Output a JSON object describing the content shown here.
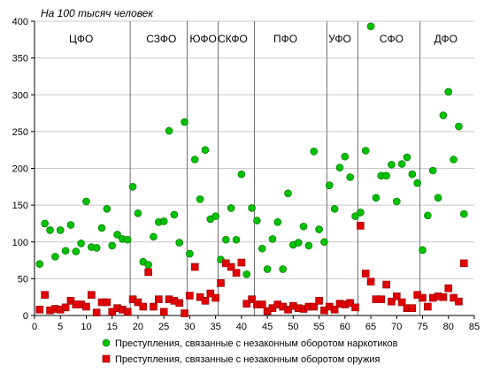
{
  "chart_data": {
    "type": "scatter",
    "ylabel": "На 100 тысяч человек",
    "xlim": [
      0,
      85
    ],
    "ylim": [
      0,
      400
    ],
    "x_ticks": [
      0,
      5,
      10,
      15,
      20,
      25,
      30,
      35,
      40,
      45,
      50,
      55,
      60,
      65,
      70,
      75,
      80,
      85
    ],
    "y_ticks": [
      0,
      50,
      100,
      150,
      200,
      250,
      300,
      350,
      400
    ],
    "grid": "horizontal",
    "legend_position": "bottom",
    "regions": [
      {
        "label": "ЦФО",
        "x": 9
      },
      {
        "label": "СЗФО",
        "x": 24.5
      },
      {
        "label": "ЮФО",
        "x": 32.6
      },
      {
        "label": "СКФО",
        "x": 38.3
      },
      {
        "label": "ПФО",
        "x": 48.5
      },
      {
        "label": "УФО",
        "x": 59
      },
      {
        "label": "СФО",
        "x": 69
      },
      {
        "label": "ДФО",
        "x": 79.5
      }
    ],
    "region_boundaries": [
      18.5,
      29.5,
      35.5,
      42.5,
      56.5,
      62.5,
      74.5
    ],
    "series": [
      {
        "name": "Преступления, связанные с незаконным оборотом наркотиков",
        "color": "#00c000",
        "marker": "circle",
        "points": [
          [
            1,
            70
          ],
          [
            2,
            125
          ],
          [
            3,
            116
          ],
          [
            4,
            80
          ],
          [
            5,
            116
          ],
          [
            6,
            88
          ],
          [
            7,
            123
          ],
          [
            8,
            87
          ],
          [
            9,
            98
          ],
          [
            10,
            155
          ],
          [
            11,
            93
          ],
          [
            12,
            92
          ],
          [
            13,
            119
          ],
          [
            14,
            145
          ],
          [
            15,
            95
          ],
          [
            16,
            110
          ],
          [
            17,
            104
          ],
          [
            18,
            103
          ],
          [
            19,
            175
          ],
          [
            20,
            139
          ],
          [
            21,
            73
          ],
          [
            22,
            69
          ],
          [
            23,
            107
          ],
          [
            24,
            127
          ],
          [
            25,
            128
          ],
          [
            26,
            251
          ],
          [
            27,
            137
          ],
          [
            28,
            99
          ],
          [
            29,
            263
          ],
          [
            30,
            84
          ],
          [
            31,
            212
          ],
          [
            32,
            158
          ],
          [
            33,
            225
          ],
          [
            34,
            131
          ],
          [
            35,
            135
          ],
          [
            36,
            76
          ],
          [
            37,
            103
          ],
          [
            38,
            146
          ],
          [
            39,
            103
          ],
          [
            40,
            192
          ],
          [
            41,
            56
          ],
          [
            42,
            146
          ],
          [
            43,
            129
          ],
          [
            44,
            91
          ],
          [
            45,
            63
          ],
          [
            46,
            104
          ],
          [
            47,
            127
          ],
          [
            48,
            63
          ],
          [
            49,
            166
          ],
          [
            50,
            96
          ],
          [
            51,
            99
          ],
          [
            52,
            121
          ],
          [
            53,
            95
          ],
          [
            54,
            223
          ],
          [
            55,
            117
          ],
          [
            56,
            100
          ],
          [
            57,
            177
          ],
          [
            58,
            145
          ],
          [
            59,
            201
          ],
          [
            60,
            216
          ],
          [
            61,
            188
          ],
          [
            62,
            135
          ],
          [
            63,
            140
          ],
          [
            64,
            224
          ],
          [
            65,
            393
          ],
          [
            66,
            160
          ],
          [
            67,
            190
          ],
          [
            68,
            190
          ],
          [
            69,
            205
          ],
          [
            70,
            155
          ],
          [
            71,
            206
          ],
          [
            72,
            215
          ],
          [
            73,
            192
          ],
          [
            74,
            180
          ],
          [
            75,
            89
          ],
          [
            76,
            136
          ],
          [
            77,
            197
          ],
          [
            78,
            160
          ],
          [
            79,
            272
          ],
          [
            80,
            304
          ],
          [
            81,
            212
          ],
          [
            82,
            257
          ],
          [
            83,
            138
          ]
        ]
      },
      {
        "name": "Преступления, связанные с незаконным оборотом оружия",
        "color": "#e00000",
        "marker": "square",
        "points": [
          [
            1,
            8
          ],
          [
            2,
            28
          ],
          [
            3,
            7
          ],
          [
            4,
            9
          ],
          [
            5,
            8
          ],
          [
            6,
            11
          ],
          [
            7,
            20
          ],
          [
            8,
            15
          ],
          [
            9,
            15
          ],
          [
            10,
            12
          ],
          [
            11,
            28
          ],
          [
            12,
            4
          ],
          [
            13,
            18
          ],
          [
            14,
            18
          ],
          [
            15,
            5
          ],
          [
            16,
            10
          ],
          [
            17,
            8
          ],
          [
            18,
            5
          ],
          [
            19,
            22
          ],
          [
            20,
            18
          ],
          [
            21,
            12
          ],
          [
            22,
            59
          ],
          [
            23,
            12
          ],
          [
            24,
            22
          ],
          [
            25,
            5
          ],
          [
            26,
            22
          ],
          [
            27,
            20
          ],
          [
            28,
            17
          ],
          [
            29,
            3
          ],
          [
            30,
            27
          ],
          [
            31,
            66
          ],
          [
            32,
            25
          ],
          [
            33,
            20
          ],
          [
            34,
            30
          ],
          [
            35,
            24
          ],
          [
            36,
            44
          ],
          [
            37,
            71
          ],
          [
            38,
            66
          ],
          [
            39,
            58
          ],
          [
            40,
            72
          ],
          [
            41,
            16
          ],
          [
            42,
            22
          ],
          [
            43,
            15
          ],
          [
            44,
            15
          ],
          [
            45,
            6
          ],
          [
            46,
            10
          ],
          [
            47,
            15
          ],
          [
            48,
            12
          ],
          [
            49,
            8
          ],
          [
            50,
            13
          ],
          [
            51,
            10
          ],
          [
            52,
            9
          ],
          [
            53,
            12
          ],
          [
            54,
            12
          ],
          [
            55,
            20
          ],
          [
            56,
            7
          ],
          [
            57,
            12
          ],
          [
            58,
            8
          ],
          [
            59,
            16
          ],
          [
            60,
            15
          ],
          [
            61,
            17
          ],
          [
            62,
            11
          ],
          [
            63,
            122
          ],
          [
            64,
            57
          ],
          [
            65,
            46
          ],
          [
            66,
            22
          ],
          [
            67,
            22
          ],
          [
            68,
            42
          ],
          [
            69,
            19
          ],
          [
            70,
            26
          ],
          [
            71,
            18
          ],
          [
            72,
            10
          ],
          [
            73,
            10
          ],
          [
            74,
            28
          ],
          [
            75,
            24
          ],
          [
            76,
            12
          ],
          [
            77,
            24
          ],
          [
            78,
            26
          ],
          [
            79,
            25
          ],
          [
            80,
            37
          ],
          [
            81,
            24
          ],
          [
            82,
            19
          ],
          [
            83,
            71
          ]
        ]
      }
    ]
  }
}
